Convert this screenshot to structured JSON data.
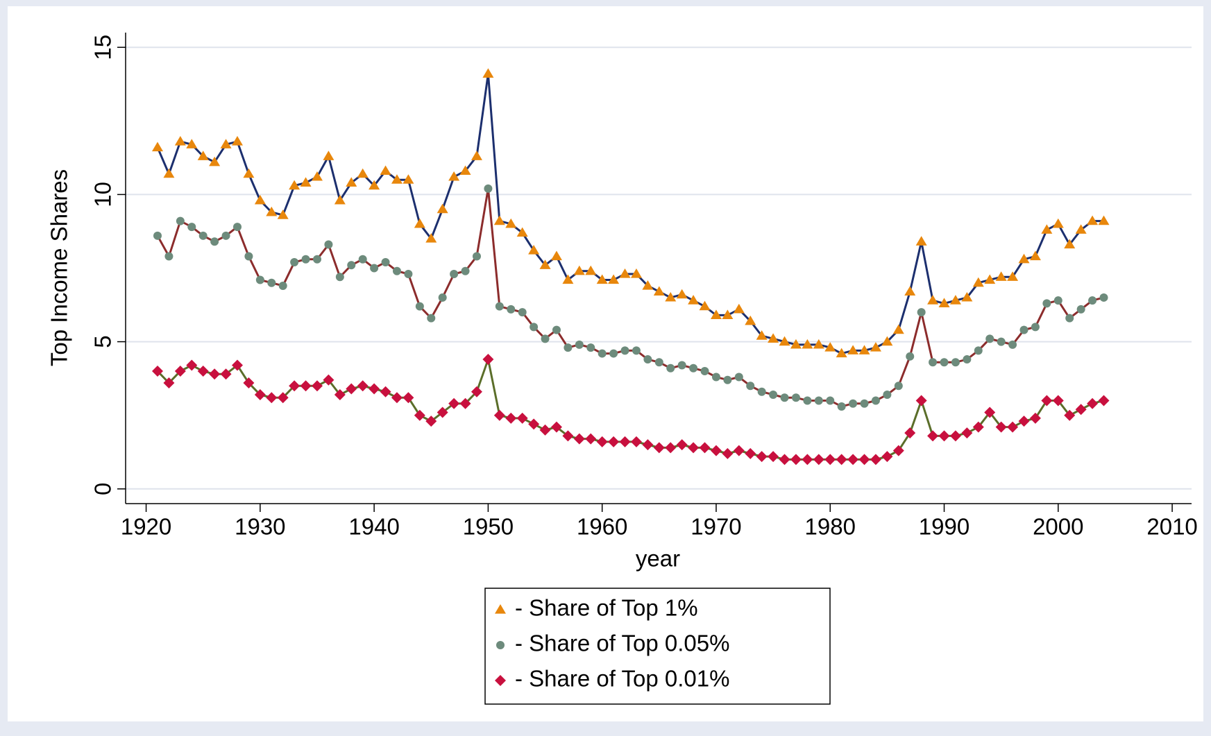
{
  "chart_data": {
    "type": "line",
    "xlabel": "year",
    "ylabel": "Top Income Shares",
    "x": [
      1921,
      1922,
      1923,
      1924,
      1925,
      1926,
      1927,
      1928,
      1929,
      1930,
      1931,
      1932,
      1933,
      1934,
      1935,
      1936,
      1937,
      1938,
      1939,
      1940,
      1941,
      1942,
      1943,
      1944,
      1945,
      1946,
      1947,
      1948,
      1949,
      1950,
      1951,
      1952,
      1953,
      1954,
      1955,
      1956,
      1957,
      1958,
      1959,
      1960,
      1961,
      1962,
      1963,
      1964,
      1965,
      1966,
      1967,
      1968,
      1969,
      1970,
      1971,
      1972,
      1973,
      1974,
      1975,
      1976,
      1977,
      1978,
      1979,
      1980,
      1981,
      1982,
      1983,
      1984,
      1985,
      1986,
      1987,
      1988,
      1989,
      1990,
      1991,
      1992,
      1993,
      1994,
      1995,
      1996,
      1997,
      1998,
      1999,
      2000,
      2001,
      2002,
      2003,
      2004
    ],
    "series": [
      {
        "name": "- Share of Top 1%",
        "marker": "triangle",
        "color": "#e8870c",
        "line_color": "#1c2f6e",
        "values": [
          11.6,
          10.7,
          11.8,
          11.7,
          11.3,
          11.1,
          11.7,
          11.8,
          10.7,
          9.8,
          9.4,
          9.3,
          10.3,
          10.4,
          10.6,
          11.3,
          9.8,
          10.4,
          10.7,
          10.3,
          10.8,
          10.5,
          10.5,
          9.0,
          8.5,
          9.5,
          10.6,
          10.8,
          11.3,
          14.1,
          9.1,
          9.0,
          8.7,
          8.1,
          7.6,
          7.9,
          7.1,
          7.4,
          7.4,
          7.1,
          7.1,
          7.3,
          7.3,
          6.9,
          6.7,
          6.5,
          6.6,
          6.4,
          6.2,
          5.9,
          5.9,
          6.1,
          5.7,
          5.2,
          5.1,
          5.0,
          4.9,
          4.9,
          4.9,
          4.8,
          4.6,
          4.7,
          4.7,
          4.8,
          5.0,
          5.4,
          6.7,
          8.4,
          6.4,
          6.3,
          6.4,
          6.5,
          7.0,
          7.1,
          7.2,
          7.2,
          7.8,
          7.9,
          8.8,
          9.0,
          8.3,
          8.8,
          9.1,
          9.1
        ]
      },
      {
        "name": "- Share of Top 0.05%",
        "marker": "circle",
        "color": "#6d8b7c",
        "line_color": "#8c2c2c",
        "values": [
          8.6,
          7.9,
          9.1,
          8.9,
          8.6,
          8.4,
          8.6,
          8.9,
          7.9,
          7.1,
          7.0,
          6.9,
          7.7,
          7.8,
          7.8,
          8.3,
          7.2,
          7.6,
          7.8,
          7.5,
          7.7,
          7.4,
          7.3,
          6.2,
          5.8,
          6.5,
          7.3,
          7.4,
          7.9,
          10.2,
          6.2,
          6.1,
          6.0,
          5.5,
          5.1,
          5.4,
          4.8,
          4.9,
          4.8,
          4.6,
          4.6,
          4.7,
          4.7,
          4.4,
          4.3,
          4.1,
          4.2,
          4.1,
          4.0,
          3.8,
          3.7,
          3.8,
          3.5,
          3.3,
          3.2,
          3.1,
          3.1,
          3.0,
          3.0,
          3.0,
          2.8,
          2.9,
          2.9,
          3.0,
          3.2,
          3.5,
          4.5,
          6.0,
          4.3,
          4.3,
          4.3,
          4.4,
          4.7,
          5.1,
          5.0,
          4.9,
          5.4,
          5.5,
          6.3,
          6.4,
          5.8,
          6.1,
          6.4,
          6.5
        ]
      },
      {
        "name": "- Share of Top 0.01%",
        "marker": "diamond",
        "color": "#c8103e",
        "line_color": "#5b6e2a",
        "values": [
          4.0,
          3.6,
          4.0,
          4.2,
          4.0,
          3.9,
          3.9,
          4.2,
          3.6,
          3.2,
          3.1,
          3.1,
          3.5,
          3.5,
          3.5,
          3.7,
          3.2,
          3.4,
          3.5,
          3.4,
          3.3,
          3.1,
          3.1,
          2.5,
          2.3,
          2.6,
          2.9,
          2.9,
          3.3,
          4.4,
          2.5,
          2.4,
          2.4,
          2.2,
          2.0,
          2.1,
          1.8,
          1.7,
          1.7,
          1.6,
          1.6,
          1.6,
          1.6,
          1.5,
          1.4,
          1.4,
          1.5,
          1.4,
          1.4,
          1.3,
          1.2,
          1.3,
          1.2,
          1.1,
          1.1,
          1.0,
          1.0,
          1.0,
          1.0,
          1.0,
          1.0,
          1.0,
          1.0,
          1.0,
          1.1,
          1.3,
          1.9,
          3.0,
          1.8,
          1.8,
          1.8,
          1.9,
          2.1,
          2.6,
          2.1,
          2.1,
          2.3,
          2.4,
          3.0,
          3.0,
          2.5,
          2.7,
          2.9,
          3.0
        ]
      }
    ],
    "xlim": [
      1918.2,
      2011.7
    ],
    "xticks": [
      1920,
      1930,
      1940,
      1950,
      1960,
      1970,
      1980,
      1990,
      2000,
      2010
    ],
    "ylim": [
      -0.5,
      15.5
    ],
    "yticks": [
      0,
      5,
      10,
      15
    ],
    "grid": true,
    "legend": "bottom"
  }
}
